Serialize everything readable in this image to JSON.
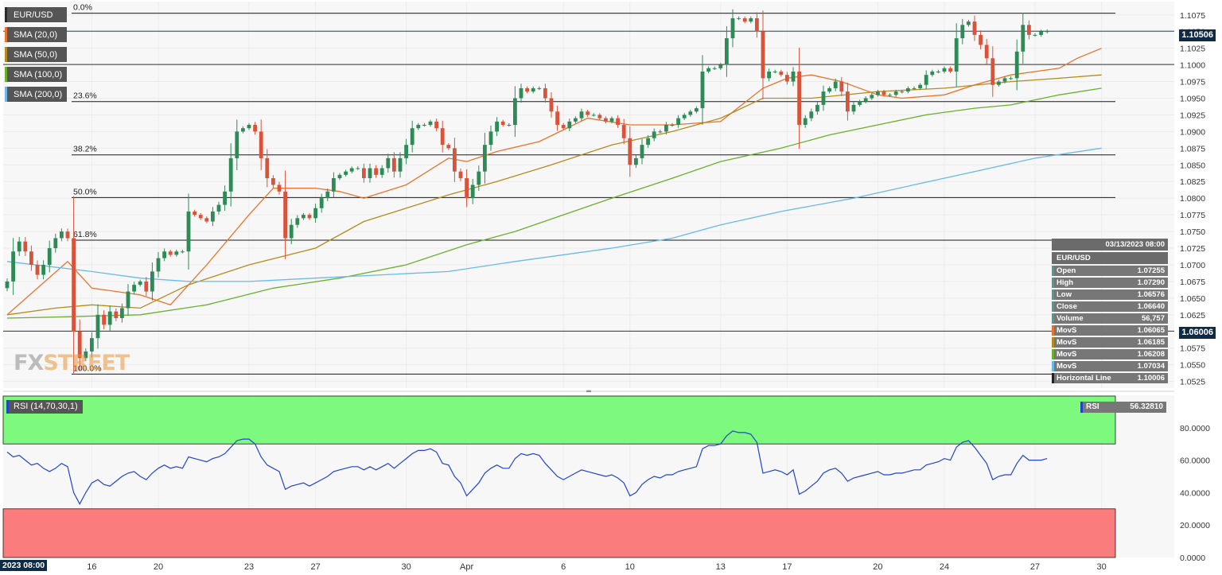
{
  "chart_data": [
    {
      "type": "candlestick",
      "title": "EUR/USD",
      "ylim": [
        1.0515,
        1.1095
      ],
      "y_ticks": [
        "1.1075",
        "1.1050",
        "1.1025",
        "1.1000",
        "1.0975",
        "1.0950",
        "1.0925",
        "1.0900",
        "1.0875",
        "1.0850",
        "1.0825",
        "1.0800",
        "1.0775",
        "1.0750",
        "1.0725",
        "1.0700",
        "1.0675",
        "1.0650",
        "1.0625",
        "1.0600",
        "1.0575",
        "1.0550",
        "1.0525"
      ],
      "x_ticks": [
        {
          "label": "16",
          "idx": 14
        },
        {
          "label": "20",
          "idx": 25
        },
        {
          "label": "23",
          "idx": 40
        },
        {
          "label": "27",
          "idx": 51
        },
        {
          "label": "30",
          "idx": 66
        },
        {
          "label": "Apr",
          "idx": 76
        },
        {
          "label": "6",
          "idx": 92
        },
        {
          "label": "10",
          "idx": 103
        },
        {
          "label": "13",
          "idx": 118
        },
        {
          "label": "17",
          "idx": 129
        },
        {
          "label": "20",
          "idx": 144
        },
        {
          "label": "24",
          "idx": 155
        },
        {
          "label": "27",
          "idx": 170
        },
        {
          "label": "30",
          "idx": 181
        }
      ],
      "legend": [
        "EUR/USD",
        "SMA (20,0)",
        "SMA (50,0)",
        "SMA (100,0)",
        "SMA (200,0)"
      ],
      "fibonacci": [
        {
          "label": "0.0%",
          "value": 1.10775
        },
        {
          "label": "23.6%",
          "value": 1.0945
        },
        {
          "label": "38.2%",
          "value": 1.0865
        },
        {
          "label": "50.0%",
          "value": 1.0801
        },
        {
          "label": "61.8%",
          "value": 1.0737
        },
        {
          "label": "100.0%",
          "value": 1.0536
        }
      ],
      "horizontal_lines": [
        1.10006,
        1.06006
      ],
      "last_price": "1.10506",
      "marked_price": "1.06006",
      "current_price": 1.10506,
      "closes": [
        1.0675,
        1.072,
        1.0735,
        1.072,
        1.07,
        1.0685,
        1.07,
        1.0725,
        1.074,
        1.075,
        1.074,
        1.06,
        1.056,
        1.057,
        1.059,
        1.0625,
        1.061,
        1.063,
        1.062,
        1.0635,
        1.066,
        1.067,
        1.0675,
        1.066,
        1.069,
        1.071,
        1.072,
        1.0715,
        1.072,
        1.072,
        1.078,
        1.0775,
        1.077,
        1.0765,
        1.078,
        1.079,
        1.081,
        1.086,
        1.09,
        1.0905,
        1.091,
        1.09,
        1.086,
        1.083,
        1.082,
        1.081,
        1.074,
        1.076,
        1.077,
        1.0775,
        1.077,
        1.0785,
        1.08,
        1.081,
        1.083,
        1.0835,
        1.084,
        1.0845,
        1.0845,
        1.083,
        1.0845,
        1.0835,
        1.0845,
        1.086,
        1.084,
        1.086,
        1.088,
        1.0905,
        1.091,
        1.091,
        1.0915,
        1.0905,
        1.088,
        1.0875,
        1.084,
        1.083,
        1.08,
        1.082,
        1.084,
        1.088,
        1.09,
        1.0915,
        1.091,
        1.091,
        1.095,
        1.0965,
        1.096,
        1.0965,
        1.0965,
        1.095,
        1.093,
        1.091,
        1.0905,
        1.0915,
        1.092,
        1.093,
        1.0925,
        1.0925,
        1.092,
        1.0915,
        1.092,
        1.091,
        1.089,
        1.085,
        1.086,
        1.088,
        1.089,
        1.09,
        1.09,
        1.091,
        1.091,
        1.092,
        1.0925,
        1.093,
        1.0935,
        1.099,
        1.0995,
        1.0995,
        1.1,
        1.104,
        1.107,
        1.107,
        1.1065,
        1.107,
        1.105,
        1.098,
        1.099,
        1.099,
        1.0985,
        1.0975,
        1.099,
        1.091,
        1.092,
        1.093,
        1.094,
        1.096,
        1.0965,
        1.0975,
        1.096,
        1.093,
        1.094,
        1.0945,
        1.095,
        1.0955,
        1.096,
        1.0955,
        1.0955,
        1.096,
        1.096,
        1.0965,
        1.0965,
        1.097,
        1.0985,
        1.099,
        1.099,
        1.0995,
        1.099,
        1.104,
        1.106,
        1.1065,
        1.1045,
        1.103,
        1.101,
        1.097,
        1.0975,
        1.098,
        1.098,
        1.102,
        1.106,
        1.1045,
        1.1045,
        1.105,
        1.10506
      ],
      "sma": [
        {
          "name": "SMA (20,0)",
          "color": "#e8732a",
          "values": [
            [
              0,
              1.0625
            ],
            [
              10,
              1.0705
            ],
            [
              14,
              1.0665
            ],
            [
              22,
              1.0655
            ],
            [
              27,
              1.064
            ],
            [
              33,
              1.07
            ],
            [
              40,
              1.0775
            ],
            [
              44,
              1.0815
            ],
            [
              51,
              1.0815
            ],
            [
              55,
              1.081
            ],
            [
              59,
              1.08
            ],
            [
              66,
              1.082
            ],
            [
              73,
              1.086
            ],
            [
              76,
              1.0855
            ],
            [
              81,
              1.087
            ],
            [
              88,
              1.0885
            ],
            [
              96,
              1.092
            ],
            [
              103,
              1.091
            ],
            [
              110,
              1.091
            ],
            [
              118,
              1.0915
            ],
            [
              125,
              1.0965
            ],
            [
              129,
              1.098
            ],
            [
              133,
              1.0985
            ],
            [
              138,
              1.0975
            ],
            [
              144,
              1.0955
            ],
            [
              148,
              1.095
            ],
            [
              155,
              1.0955
            ],
            [
              160,
              1.097
            ],
            [
              166,
              1.0985
            ],
            [
              170,
              1.099
            ],
            [
              174,
              1.0995
            ],
            [
              177,
              1.101
            ],
            [
              181,
              1.1025
            ]
          ]
        },
        {
          "name": "SMA (50,0)",
          "color": "#b58b1e",
          "values": [
            [
              0,
              1.0625
            ],
            [
              8,
              1.0635
            ],
            [
              14,
              1.064
            ],
            [
              22,
              1.0635
            ],
            [
              30,
              1.067
            ],
            [
              40,
              1.07
            ],
            [
              51,
              1.0725
            ],
            [
              59,
              1.0765
            ],
            [
              66,
              1.0785
            ],
            [
              73,
              1.0805
            ],
            [
              81,
              1.0825
            ],
            [
              90,
              1.085
            ],
            [
              100,
              1.088
            ],
            [
              110,
              1.09
            ],
            [
              118,
              1.092
            ],
            [
              125,
              1.095
            ],
            [
              133,
              1.095
            ],
            [
              144,
              1.096
            ],
            [
              155,
              1.0965
            ],
            [
              166,
              1.0975
            ],
            [
              174,
              1.098
            ],
            [
              181,
              1.0985
            ]
          ]
        },
        {
          "name": "SMA (100,0)",
          "color": "#6ab02a",
          "values": [
            [
              0,
              1.062
            ],
            [
              10,
              1.0622
            ],
            [
              22,
              1.0625
            ],
            [
              33,
              1.064
            ],
            [
              44,
              1.0665
            ],
            [
              55,
              1.068
            ],
            [
              66,
              1.07
            ],
            [
              76,
              1.073
            ],
            [
              84,
              1.075
            ],
            [
              92,
              1.0775
            ],
            [
              100,
              1.08
            ],
            [
              110,
              1.083
            ],
            [
              118,
              1.0855
            ],
            [
              128,
              1.0875
            ],
            [
              136,
              1.0895
            ],
            [
              144,
              1.091
            ],
            [
              152,
              1.0925
            ],
            [
              160,
              1.0935
            ],
            [
              166,
              1.094
            ],
            [
              174,
              1.0955
            ],
            [
              181,
              1.0965
            ]
          ]
        },
        {
          "name": "SMA (200,0)",
          "color": "#6ab8e8",
          "values": [
            [
              0,
              1.0705
            ],
            [
              14,
              1.069
            ],
            [
              22,
              1.068
            ],
            [
              30,
              1.0675
            ],
            [
              40,
              1.0675
            ],
            [
              51,
              1.068
            ],
            [
              62,
              1.0685
            ],
            [
              73,
              1.069
            ],
            [
              84,
              1.0705
            ],
            [
              100,
              1.0725
            ],
            [
              110,
              1.074
            ],
            [
              118,
              1.076
            ],
            [
              128,
              1.078
            ],
            [
              140,
              1.08
            ],
            [
              150,
              1.082
            ],
            [
              160,
              1.084
            ],
            [
              170,
              1.086
            ],
            [
              181,
              1.0875
            ]
          ]
        }
      ],
      "info_panel": {
        "timestamp": "03/13/2023 08:00",
        "symbol": "EUR/USD",
        "rows": [
          {
            "label": "Open",
            "value": "1.07255",
            "color": "#6b8f88"
          },
          {
            "label": "High",
            "value": "1.07290",
            "color": "#6b8f88"
          },
          {
            "label": "Low",
            "value": "1.06576",
            "color": "#6b8f88"
          },
          {
            "label": "Close",
            "value": "1.06640",
            "color": "#6b8f88"
          },
          {
            "label": "Volume",
            "value": "56,757",
            "color": "#6b8f88"
          },
          {
            "label": "MovS",
            "value": "1.06065",
            "color": "#e8732a"
          },
          {
            "label": "MovS",
            "value": "1.06185",
            "color": "#b58b1e"
          },
          {
            "label": "MovS",
            "value": "1.06208",
            "color": "#6ab02a"
          },
          {
            "label": "MovS",
            "value": "1.07034",
            "color": "#6ab8e8"
          },
          {
            "label": "Horizontal Line",
            "value": "1.10006",
            "color": "#222222"
          }
        ]
      },
      "colors": {
        "up": "#2e8b57",
        "down": "#d9533a",
        "grid": "#eaeaea"
      }
    },
    {
      "type": "line",
      "title": "RSI (14,70,30,1)",
      "ylim": [
        0,
        100
      ],
      "y_ticks": [
        "80.0000",
        "60.0000",
        "40.0000",
        "20.0000",
        "0.0000"
      ],
      "overbought": 70,
      "oversold": 30,
      "current_value": "56.32810",
      "series": [
        {
          "name": "RSI",
          "color": "#2244cc",
          "values": [
            65,
            62,
            63,
            60,
            57,
            58,
            55,
            53,
            55,
            58,
            56,
            40,
            33,
            40,
            46,
            48,
            45,
            44,
            47,
            50,
            52,
            53,
            50,
            48,
            52,
            55,
            57,
            55,
            56,
            55,
            62,
            61,
            60,
            59,
            61,
            62,
            64,
            68,
            72,
            73,
            73,
            70,
            62,
            57,
            55,
            53,
            42,
            44,
            45,
            46,
            44,
            46,
            48,
            50,
            53,
            54,
            55,
            56,
            56,
            54,
            56,
            54,
            56,
            58,
            55,
            58,
            61,
            64,
            66,
            66,
            67,
            65,
            58,
            57,
            50,
            46,
            38,
            42,
            46,
            52,
            55,
            57,
            55,
            55,
            61,
            64,
            63,
            64,
            63,
            58,
            54,
            50,
            48,
            50,
            52,
            54,
            53,
            52,
            51,
            50,
            51,
            49,
            46,
            38,
            40,
            45,
            48,
            50,
            49,
            51,
            51,
            53,
            54,
            55,
            56,
            67,
            69,
            69,
            70,
            75,
            78,
            77,
            77,
            76,
            71,
            52,
            53,
            54,
            53,
            51,
            54,
            39,
            41,
            44,
            47,
            52,
            54,
            55,
            52,
            47,
            49,
            50,
            51,
            52,
            53,
            51,
            51,
            52,
            52,
            53,
            54,
            54,
            57,
            58,
            59,
            61,
            60,
            68,
            71,
            72,
            68,
            63,
            58,
            48,
            50,
            51,
            51,
            58,
            63,
            60,
            60,
            60,
            61
          ]
        }
      ]
    }
  ],
  "watermark": {
    "part1": "FX",
    "part2": "STREET"
  },
  "date_tag": "2023 08:00",
  "handle_glyph": "═"
}
